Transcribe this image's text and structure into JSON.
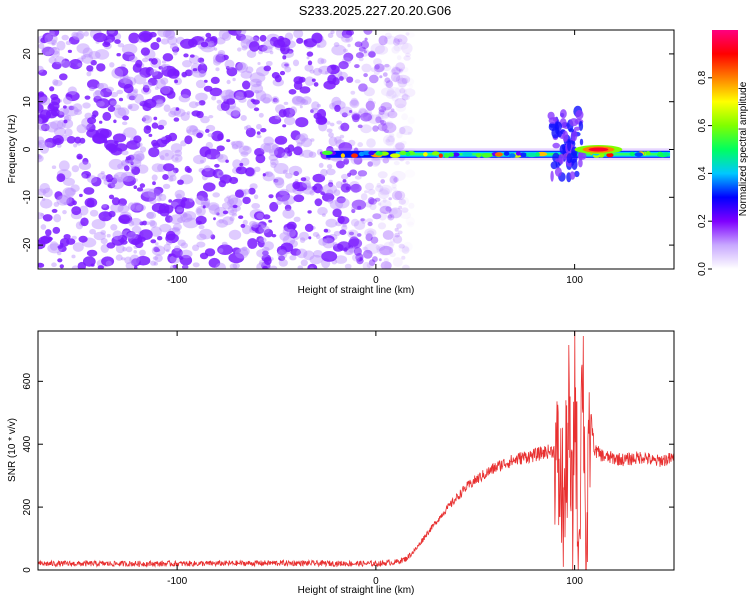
{
  "title": "S233.2025.227.20.20.G06",
  "chart_data": [
    {
      "type": "heatmap",
      "title": "",
      "xlabel": "Height of straight line (km)",
      "ylabel": "Frequency (Hz)",
      "xlim": [
        -170,
        150
      ],
      "ylim": [
        -25,
        25
      ],
      "xticks": [
        -100,
        0,
        100
      ],
      "yticks": [
        -20,
        -10,
        0,
        10,
        20
      ],
      "colorbar": {
        "label": "Normalized spectral amplitude",
        "range": [
          0,
          1
        ],
        "ticks": [
          0.0,
          0.2,
          0.4,
          0.6,
          0.8
        ],
        "colors": [
          "#ffffff",
          "#c8a8ff",
          "#7f00ff",
          "#0000ff",
          "#00c8ff",
          "#00ff60",
          "#80ff00",
          "#ffff00",
          "#ff8000",
          "#ff0000",
          "#ff0080"
        ]
      },
      "features": [
        {
          "desc": "noise",
          "x_range": [
            -170,
            12
          ],
          "amplitude": 0.1
        },
        {
          "desc": "carrier",
          "x_range": [
            -25,
            148
          ],
          "freq": -1,
          "amplitude": 0.5
        },
        {
          "desc": "disturbance",
          "x_range": [
            88,
            104
          ],
          "freq_range": [
            -6,
            8
          ],
          "amplitude": 0.2
        },
        {
          "desc": "peak",
          "x_range": [
            104,
            120
          ],
          "freq": 0,
          "amplitude": 0.98
        }
      ]
    },
    {
      "type": "line",
      "title": "",
      "xlabel": "Height of straight line (km)",
      "ylabel": "SNR (10 * v/v)",
      "xlim": [
        -170,
        150
      ],
      "ylim": [
        0,
        760
      ],
      "xticks": [
        -100,
        0,
        100
      ],
      "yticks": [
        0,
        200,
        400,
        600
      ],
      "color": "#e83030",
      "series": [
        {
          "x": [
            -170,
            -100,
            -50,
            0,
            10,
            15,
            20,
            25,
            30,
            35,
            40,
            45,
            50,
            55,
            60,
            65,
            70,
            75,
            80,
            85,
            90,
            92,
            95,
            97,
            99,
            100,
            102,
            104,
            106,
            108,
            110,
            115,
            120,
            125,
            130,
            135,
            140,
            145,
            150
          ],
          "y": [
            20,
            20,
            22,
            20,
            25,
            35,
            65,
            110,
            150,
            190,
            225,
            260,
            285,
            305,
            325,
            340,
            350,
            360,
            365,
            375,
            380,
            300,
            200,
            500,
            100,
            650,
            50,
            700,
            30,
            500,
            380,
            360,
            355,
            350,
            355,
            360,
            345,
            350,
            355
          ]
        }
      ]
    }
  ]
}
